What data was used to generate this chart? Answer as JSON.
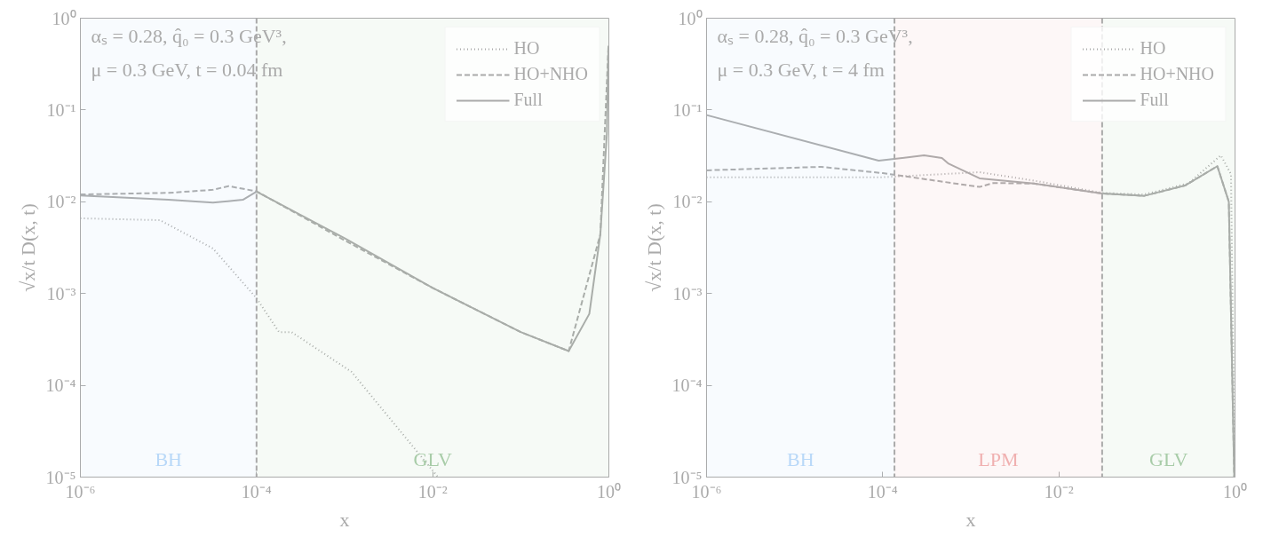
{
  "chart_data": [
    {
      "type": "line",
      "xlabel": "x",
      "ylabel": "√x/t D(x, t)",
      "log": "xy",
      "legend": "top right",
      "marker": "none",
      "grid": false,
      "annotations": [
        "αₛ = 0.28, q̂₀ = 0.3 GeV³,",
        "μ = 0.3 GeV, t = 0.04 fm"
      ],
      "xlim": [
        1e-06,
        1
      ],
      "ylim": [
        1e-05,
        1
      ],
      "xticks": [
        {
          "value": 1e-06,
          "label": "10⁻⁶"
        },
        {
          "value": 0.0001,
          "label": "10⁻⁴"
        },
        {
          "value": 0.01,
          "label": "10⁻²"
        },
        {
          "value": 1,
          "label": "10⁰"
        }
      ],
      "yticks": [
        {
          "value": 1e-05,
          "label": "10⁻⁵"
        },
        {
          "value": 0.0001,
          "label": "10⁻⁴"
        },
        {
          "value": 0.001,
          "label": "10⁻³"
        },
        {
          "value": 0.01,
          "label": "10⁻²"
        },
        {
          "value": 0.1,
          "label": "10⁻¹"
        },
        {
          "value": 1,
          "label": "10⁰"
        }
      ],
      "ref_lines": [
        {
          "axis": "x",
          "value": 0.0001,
          "color": "#aaaaaa",
          "line_style": "dashed"
        }
      ],
      "bands": [
        {
          "axis": "x",
          "from": 1e-06,
          "to": 0.0001,
          "label": "BH",
          "color": "#b8d8f8"
        },
        {
          "axis": "x",
          "from": 0.0001,
          "to": 1,
          "label": "GLV",
          "color": "#a8cca8"
        }
      ],
      "series": [
        {
          "name": "HO",
          "color": "#aaaaaa",
          "line_style": "dotted",
          "x": [
            1e-06,
            8e-06,
            3.2e-05,
            0.0001,
            0.00018,
            0.00025,
            0.0012,
            0.0115
          ],
          "values": [
            0.0066,
            0.0063,
            0.0031,
            0.00089,
            0.00038,
            0.00038,
            0.00014,
            1e-05
          ]
        },
        {
          "name": "HO+NHO",
          "color": "#aaaaaa",
          "line_style": "dashed",
          "x": [
            1e-06,
            1e-05,
            3.2e-05,
            4.8e-05,
            0.0001,
            0.001,
            0.01,
            0.1,
            0.35,
            0.8,
            0.99
          ],
          "values": [
            0.012,
            0.0125,
            0.0135,
            0.0148,
            0.013,
            0.0038,
            0.00115,
            0.00038,
            0.000236,
            0.0044,
            0.5
          ]
        },
        {
          "name": "Full",
          "color": "#aaaaaa",
          "line_style": "solid",
          "x": [
            1e-06,
            1e-05,
            3.2e-05,
            7e-05,
            0.0001,
            0.001,
            0.01,
            0.1,
            0.35,
            0.6,
            0.8,
            0.95,
            0.99
          ],
          "values": [
            0.0117,
            0.0105,
            0.0098,
            0.0105,
            0.0129,
            0.004,
            0.00115,
            0.00038,
            0.000236,
            0.0006,
            0.0044,
            0.055,
            0.5
          ]
        }
      ]
    },
    {
      "type": "line",
      "xlabel": "x",
      "ylabel": "√x/t D(x, t)",
      "log": "xy",
      "legend": "top right",
      "marker": "none",
      "grid": false,
      "annotations": [
        "αₛ = 0.28, q̂₀ = 0.3 GeV³,",
        "μ = 0.3 GeV, t = 4 fm"
      ],
      "xlim": [
        1e-06,
        1
      ],
      "ylim": [
        1e-05,
        1
      ],
      "xticks": [
        {
          "value": 1e-06,
          "label": "10⁻⁶"
        },
        {
          "value": 0.0001,
          "label": "10⁻⁴"
        },
        {
          "value": 0.01,
          "label": "10⁻²"
        },
        {
          "value": 1,
          "label": "10⁰"
        }
      ],
      "yticks": [
        {
          "value": 1e-05,
          "label": "10⁻⁵"
        },
        {
          "value": 0.0001,
          "label": "10⁻⁴"
        },
        {
          "value": 0.001,
          "label": "10⁻³"
        },
        {
          "value": 0.01,
          "label": "10⁻²"
        },
        {
          "value": 0.1,
          "label": "10⁻¹"
        },
        {
          "value": 1,
          "label": "10⁰"
        }
      ],
      "ref_lines": [
        {
          "axis": "x",
          "value": 0.000136,
          "color": "#aaaaaa",
          "line_style": "dashed"
        },
        {
          "axis": "x",
          "value": 0.031,
          "color": "#aaaaaa",
          "line_style": "dashed"
        }
      ],
      "bands": [
        {
          "axis": "x",
          "from": 1e-06,
          "to": 0.000136,
          "label": "BH",
          "color": "#b8d8f8"
        },
        {
          "axis": "x",
          "from": 0.000136,
          "to": 0.031,
          "label": "LPM",
          "color": "#f0b0b0"
        },
        {
          "axis": "x",
          "from": 0.031,
          "to": 1,
          "label": "GLV",
          "color": "#a8cca8"
        }
      ],
      "series": [
        {
          "name": "HO",
          "color": "#aaaaaa",
          "line_style": "dotted",
          "x": [
            1e-06,
            0.0001,
            0.00126,
            0.0052,
            0.031,
            0.093,
            0.3,
            0.69,
            0.9,
            0.99
          ],
          "values": [
            0.0185,
            0.0185,
            0.021,
            0.017,
            0.0125,
            0.012,
            0.016,
            0.032,
            0.02,
            1e-05
          ]
        },
        {
          "name": "HO+NHO",
          "color": "#aaaaaa",
          "line_style": "dashed",
          "x": [
            1e-06,
            2e-05,
            0.0001,
            0.00126,
            0.0018,
            0.0052,
            0.031,
            0.093,
            0.27,
            0.63,
            0.85,
            0.98
          ],
          "values": [
            0.022,
            0.024,
            0.0205,
            0.0145,
            0.016,
            0.0158,
            0.0123,
            0.0116,
            0.015,
            0.0244,
            0.01,
            1e-05
          ]
        },
        {
          "name": "Full",
          "color": "#aaaaaa",
          "line_style": "solid",
          "x": [
            1e-06,
            9e-05,
            0.000295,
            0.00047,
            0.00056,
            0.00126,
            0.0052,
            0.031,
            0.093,
            0.27,
            0.63,
            0.85,
            0.98
          ],
          "values": [
            0.088,
            0.028,
            0.032,
            0.03,
            0.026,
            0.018,
            0.0158,
            0.0123,
            0.0116,
            0.015,
            0.0244,
            0.01,
            1e-05
          ]
        }
      ]
    }
  ]
}
